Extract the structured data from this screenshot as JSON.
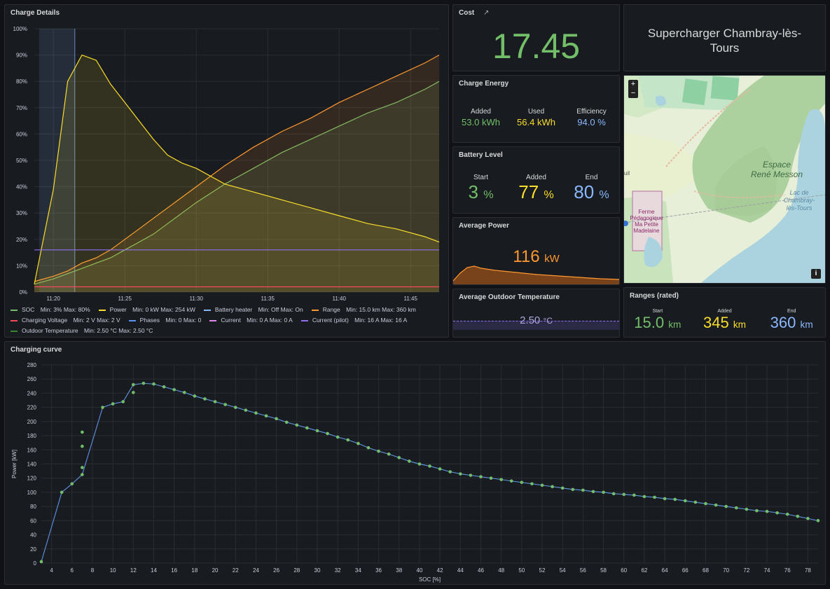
{
  "charge_details": {
    "title": "Charge Details",
    "y_ticks": [
      "100%",
      "90%",
      "80%",
      "70%",
      "60%",
      "50%",
      "40%",
      "30%",
      "20%",
      "10%",
      "0%"
    ],
    "x_ticks": [
      "11:20",
      "11:25",
      "11:30",
      "11:35",
      "11:40",
      "11:45"
    ],
    "legend": [
      {
        "label": "SOC",
        "stats": "Min: 3%   Max: 80%",
        "color": "#73bf69"
      },
      {
        "label": "Power",
        "stats": "Min: 0 kW   Max: 254 kW",
        "color": "#fade2a"
      },
      {
        "label": "Battery heater",
        "stats": "Min: Off   Max: On",
        "color": "#8ab8ff"
      },
      {
        "label": "Range",
        "stats": "Min: 15.0 km   Max: 360 km",
        "color": "#ff9830"
      },
      {
        "label": "Charging Voltage",
        "stats": "Min: 2 V   Max: 2 V",
        "color": "#f2495c"
      },
      {
        "label": "Phases",
        "stats": "Min: 0   Max: 0",
        "color": "#5794f2"
      },
      {
        "label": "Current",
        "stats": "Min: 0 A   Max: 0 A",
        "color": "#e08ae8"
      },
      {
        "label": "Current (pilot)",
        "stats": "Min: 16 A   Max: 16 A",
        "color": "#8f6ff2"
      },
      {
        "label": "Outdoor Temperature",
        "stats": "Min: 2.50 °C   Max: 2.50 °C",
        "color": "#37872d"
      }
    ]
  },
  "cost": {
    "title": "Cost",
    "value": "17.45"
  },
  "location": {
    "name": "Supercharger Chambray-lès-Tours"
  },
  "map": {
    "zoom_in": "+",
    "zoom_out": "−",
    "info": "i",
    "labels": [
      "Espace",
      "René Messon",
      "Lac de",
      "Chambray-",
      "lès-Tours",
      "Ferme",
      "Pédagogique",
      "Ma Petite",
      "Madelaine",
      "uil"
    ]
  },
  "charge_energy": {
    "title": "Charge Energy",
    "items": [
      {
        "label": "Added",
        "value": "53.0",
        "unit": "kWh"
      },
      {
        "label": "Used",
        "value": "56.4",
        "unit": "kWh"
      },
      {
        "label": "Efficiency",
        "value": "94.0",
        "unit": "%"
      }
    ]
  },
  "battery_level": {
    "title": "Battery Level",
    "items": [
      {
        "label": "Start",
        "value": "3",
        "unit": "%"
      },
      {
        "label": "Added",
        "value": "77",
        "unit": "%"
      },
      {
        "label": "End",
        "value": "80",
        "unit": "%"
      }
    ]
  },
  "average_power": {
    "title": "Average Power",
    "value": "116",
    "unit": "kW"
  },
  "average_temp": {
    "title": "Average Outdoor Temperature",
    "value": "2.50",
    "unit": "°C"
  },
  "ranges": {
    "title": "Ranges (rated)",
    "items": [
      {
        "label": "Start",
        "value": "15.0",
        "unit": "km"
      },
      {
        "label": "Added",
        "value": "345",
        "unit": "km"
      },
      {
        "label": "End",
        "value": "360",
        "unit": "km"
      }
    ]
  },
  "chart_data": [
    {
      "type": "line",
      "title": "Charge Details",
      "x_unit": "time",
      "x": [
        "11:18:40",
        "11:20",
        "11:21",
        "11:22",
        "11:23",
        "11:24",
        "11:25",
        "11:26",
        "11:27",
        "11:28",
        "11:29",
        "11:30",
        "11:32",
        "11:34",
        "11:36",
        "11:38",
        "11:40",
        "11:42",
        "11:44",
        "11:46",
        "11:47"
      ],
      "ylim": [
        0,
        100
      ],
      "series": [
        {
          "name": "SOC",
          "color": "#73bf69",
          "values": [
            3,
            5,
            7,
            9,
            11,
            13,
            16,
            19,
            22,
            26,
            30,
            34,
            41,
            47,
            53,
            58,
            63,
            68,
            72,
            77,
            80
          ]
        },
        {
          "name": "Range",
          "color": "#ff9830",
          "values": [
            4,
            6,
            8,
            11,
            13,
            16,
            20,
            24,
            28,
            32,
            36,
            40,
            48,
            55,
            61,
            66,
            72,
            77,
            82,
            87,
            90
          ]
        },
        {
          "name": "Power",
          "color": "#fade2a",
          "values": [
            3,
            39,
            80,
            90,
            88,
            79,
            72,
            65,
            58,
            52,
            49,
            47,
            41,
            38,
            35,
            32,
            29,
            26,
            24,
            21,
            19
          ]
        },
        {
          "name": "Current (pilot)",
          "color": "#8f6ff2",
          "values": [
            16,
            16,
            16,
            16,
            16,
            16,
            16,
            16,
            16,
            16,
            16,
            16,
            16,
            16,
            16,
            16,
            16,
            16,
            16,
            16,
            16
          ]
        },
        {
          "name": "Charging Voltage",
          "color": "#f2495c",
          "values": [
            2,
            2,
            2,
            2,
            2,
            2,
            2,
            2,
            2,
            2,
            2,
            2,
            2,
            2,
            2,
            2,
            2,
            2,
            2,
            2,
            2
          ]
        }
      ]
    },
    {
      "type": "scatter",
      "title": "Charging curve",
      "xlabel": "SOC [%]",
      "ylabel": "Power [kW]",
      "xlim": [
        3,
        79
      ],
      "ylim": [
        0,
        280
      ],
      "x_ticks": [
        4,
        6,
        8,
        10,
        12,
        14,
        16,
        18,
        20,
        22,
        24,
        26,
        28,
        30,
        32,
        34,
        36,
        38,
        40,
        42,
        44,
        46,
        48,
        50,
        52,
        54,
        56,
        58,
        60,
        62,
        64,
        66,
        68,
        70,
        72,
        74,
        76,
        78
      ],
      "y_ticks": [
        0,
        20,
        40,
        60,
        80,
        100,
        120,
        140,
        160,
        180,
        200,
        220,
        240,
        260,
        280
      ],
      "x": [
        3,
        5,
        6,
        7,
        7,
        7,
        7,
        9,
        10,
        11,
        12,
        12,
        13,
        14,
        15,
        16,
        17,
        18,
        19,
        20,
        21,
        22,
        23,
        24,
        25,
        26,
        27,
        28,
        29,
        30,
        31,
        32,
        33,
        34,
        35,
        36,
        37,
        38,
        39,
        40,
        41,
        42,
        43,
        44,
        45,
        46,
        47,
        48,
        49,
        50,
        51,
        52,
        53,
        54,
        55,
        56,
        57,
        58,
        59,
        60,
        61,
        62,
        63,
        64,
        65,
        66,
        67,
        68,
        69,
        70,
        71,
        72,
        73,
        74,
        75,
        76,
        77,
        78,
        79
      ],
      "values": [
        2,
        100,
        112,
        125,
        135,
        165,
        185,
        220,
        225,
        228,
        252,
        241,
        254,
        253,
        249,
        245,
        241,
        236,
        232,
        228,
        224,
        220,
        216,
        212,
        208,
        204,
        199,
        195,
        191,
        187,
        183,
        178,
        174,
        169,
        163,
        158,
        154,
        149,
        144,
        140,
        137,
        133,
        129,
        126,
        124,
        122,
        120,
        118,
        116,
        114,
        112,
        110,
        108,
        106,
        104,
        103,
        101,
        100,
        98,
        97,
        96,
        94,
        93,
        91,
        90,
        88,
        86,
        84,
        82,
        80,
        78,
        76,
        74,
        73,
        71,
        69,
        66,
        63,
        60
      ]
    }
  ],
  "charging_curve": {
    "title": "Charging curve"
  }
}
